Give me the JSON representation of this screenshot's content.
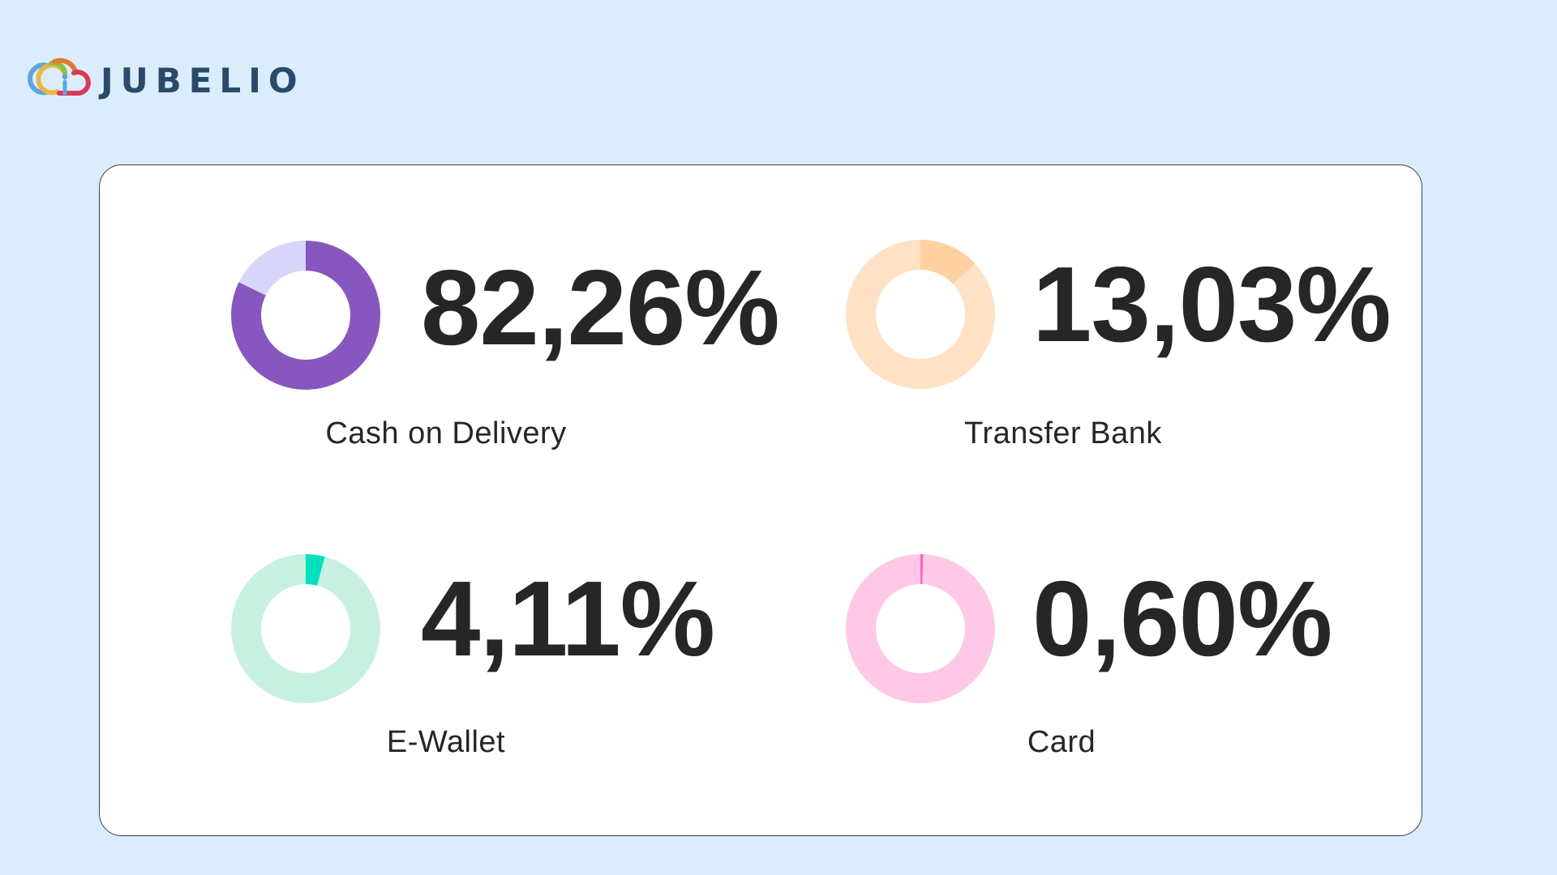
{
  "brand": {
    "name": "JUBELIO",
    "logo_icon": "cloud-logo-icon",
    "colors": {
      "wordmark": "#2A4A6B",
      "blue": "#5BA7DA",
      "yellow": "#EDB33E",
      "green": "#8DBF45",
      "orange": "#E07B2E",
      "red": "#D9385A"
    }
  },
  "page": {
    "background": "#DBEDFD",
    "card_background": "#FFFFFF"
  },
  "metrics": [
    {
      "value_label": "82,26%",
      "value": 82.26,
      "label": "Cash on Delivery",
      "color": "#8757BF",
      "track_color": "#D8D5FA"
    },
    {
      "value_label": "13,03%",
      "value": 13.03,
      "label": "Transfer Bank",
      "color": "#FFD0A0",
      "track_color": "#FFE2C6"
    },
    {
      "value_label": "4,11%",
      "value": 4.11,
      "label": "E-Wallet",
      "color": "#00E0BE",
      "track_color": "#C8F0E0"
    },
    {
      "value_label": "0,60%",
      "value": 0.6,
      "label": "Card",
      "color": "#FF5EC4",
      "track_color": "#FFC8E6"
    }
  ],
  "chart_data": {
    "type": "pie",
    "title": "",
    "categories": [
      "Cash on Delivery",
      "Transfer Bank",
      "E-Wallet",
      "Card"
    ],
    "values": [
      82.26,
      13.03,
      4.11,
      0.6
    ],
    "unit": "%",
    "colors": [
      "#8757BF",
      "#FFD0A0",
      "#00E0BE",
      "#FF5EC4"
    ],
    "layout": "2x2 grid of donut charts, each showing one category share against a light track, with large percentage value and label",
    "legend": "none (labels below each donut/value pair)"
  }
}
